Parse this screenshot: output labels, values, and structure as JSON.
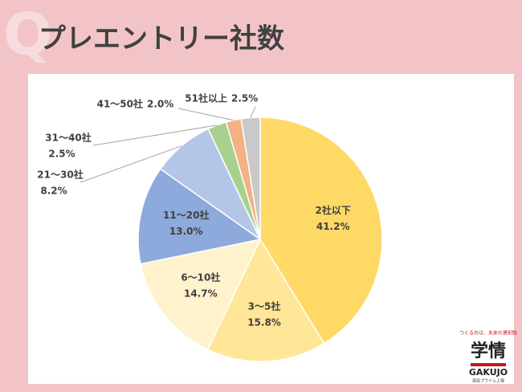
{
  "chart_data": {
    "type": "pie",
    "title": "プレエントリー社数",
    "categories": [
      "2社以下",
      "3〜5社",
      "6〜10社",
      "11〜20社",
      "21〜30社",
      "31〜40社",
      "41〜50社",
      "51社以上"
    ],
    "values": [
      41.2,
      15.8,
      14.7,
      13.0,
      8.2,
      2.5,
      2.0,
      2.5
    ],
    "value_labels": [
      "41.2%",
      "15.8%",
      "14.7%",
      "13.0%",
      "8.2%",
      "2.5%",
      "2.0%",
      "2.5%"
    ],
    "colors": [
      "#FFD966",
      "#FFE699",
      "#FFF2CC",
      "#8EA9DB",
      "#B4C6E7",
      "#A9D18E",
      "#F4B183",
      "#C9C9C9"
    ]
  },
  "watermark": "Q",
  "logo": {
    "tagline": "つくるのは、未来の選択肢",
    "name": "学情",
    "brand": "GAKUJO",
    "listing": "東証プライム上場"
  }
}
